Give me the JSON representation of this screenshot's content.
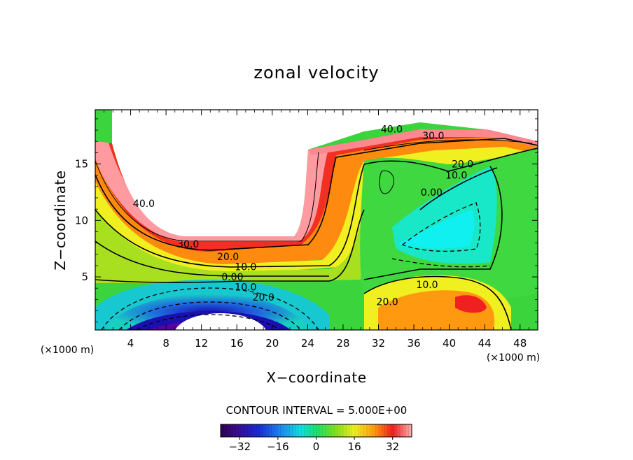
{
  "chart_data": {
    "type": "heatmap",
    "title": "zonal velocity",
    "xlabel": "X−coordinate",
    "ylabel": "Z−coordinate",
    "x_unit": "(×1000 m)",
    "y_unit": "(×1000 m)",
    "xlim": [
      0,
      50
    ],
    "ylim": [
      0.3,
      19.8
    ],
    "x_ticks": [
      4,
      8,
      12,
      16,
      20,
      24,
      28,
      32,
      36,
      40,
      44,
      48
    ],
    "x_tick_labels": [
      "4",
      "8",
      "12",
      "16",
      "20",
      "24",
      "28",
      "32",
      "36",
      "40",
      "44",
      "48"
    ],
    "y_ticks": [
      5,
      10,
      15
    ],
    "y_tick_labels": [
      "5",
      "10",
      "15"
    ],
    "contour_interval_label": "CONTOUR INTERVAL = 5.000E+00",
    "colorbar": {
      "min": -40,
      "max": 40,
      "ticks": [
        -32,
        -16,
        0,
        16,
        32
      ],
      "tick_labels": [
        "−32",
        "−16",
        "0",
        "16",
        "32"
      ]
    },
    "contour_labels": [
      {
        "text": "40.0",
        "x": 33.5,
        "z": 17.8
      },
      {
        "text": "30.0",
        "x": 38.2,
        "z": 17.2
      },
      {
        "text": "20.0",
        "x": 41.5,
        "z": 14.7
      },
      {
        "text": "10.0",
        "x": 40.8,
        "z": 13.7
      },
      {
        "text": "0.00",
        "x": 38.0,
        "z": 12.2
      },
      {
        "text": "40.0",
        "x": 5.5,
        "z": 11.2
      },
      {
        "text": "30.0",
        "x": 10.5,
        "z": 7.6
      },
      {
        "text": "20.0",
        "x": 15.0,
        "z": 6.5
      },
      {
        "text": "10.0",
        "x": 17.0,
        "z": 5.6
      },
      {
        "text": "0.00",
        "x": 15.5,
        "z": 4.7
      },
      {
        "text": "10.0",
        "x": 17.0,
        "z": 3.8
      },
      {
        "text": "20.0",
        "x": 19.0,
        "z": 2.9
      },
      {
        "text": "10.0",
        "x": 37.5,
        "z": 4.0
      },
      {
        "text": "20.0",
        "x": 33.0,
        "z": 2.5
      }
    ]
  }
}
